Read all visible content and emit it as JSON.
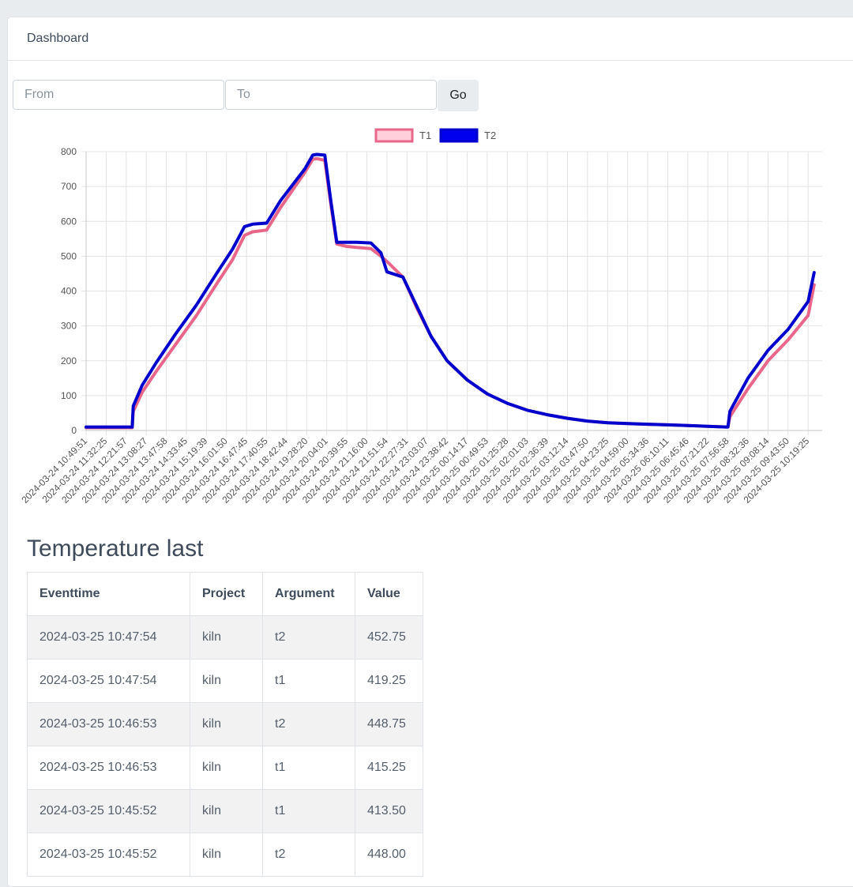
{
  "header": {
    "title": "Dashboard"
  },
  "filter": {
    "from_placeholder": "From",
    "to_placeholder": "To",
    "go_label": "Go"
  },
  "chart_data": {
    "type": "line",
    "legend_position": "top",
    "grid": true,
    "ylim": [
      0,
      800
    ],
    "yticks": [
      0,
      100,
      200,
      300,
      400,
      500,
      600,
      700,
      800
    ],
    "xticks": [
      "2024-03-24 10:49:51",
      "2024-03-24 11:32:25",
      "2024-03-24 12:21:57",
      "2024-03-24 13:08:27",
      "2024-03-24 13:47:58",
      "2024-03-24 14:33:45",
      "2024-03-24 15:19:39",
      "2024-03-24 16:01:50",
      "2024-03-24 16:47:45",
      "2024-03-24 17:40:55",
      "2024-03-24 18:42:44",
      "2024-03-24 19:28:20",
      "2024-03-24 20:04:01",
      "2024-03-24 20:39:55",
      "2024-03-24 21:16:00",
      "2024-03-24 21:51:54",
      "2024-03-24 22:27:31",
      "2024-03-24 23:03:07",
      "2024-03-24 23:38:42",
      "2024-03-25 00:14:17",
      "2024-03-25 00:49:53",
      "2024-03-25 01:25:28",
      "2024-03-25 02:01:03",
      "2024-03-25 02:36:39",
      "2024-03-25 03:12:14",
      "2024-03-25 03:47:50",
      "2024-03-25 04:23:25",
      "2024-03-25 04:59:00",
      "2024-03-25 05:34:36",
      "2024-03-25 06:10:11",
      "2024-03-25 06:45:46",
      "2024-03-25 07:21:22",
      "2024-03-25 07:56:58",
      "2024-03-25 08:32:36",
      "2024-03-25 09:08:14",
      "2024-03-25 09:43:50",
      "2024-03-25 10:19:25"
    ],
    "series": [
      {
        "name": "T1",
        "color": "#e8668a",
        "fill": "#ffcfdc",
        "x": [
          0,
          2.3,
          2.35,
          2.8,
          3.5,
          4.5,
          5.5,
          6.5,
          7.3,
          7.9,
          8.3,
          9.0,
          9.7,
          10.3,
          10.9,
          11.3,
          11.5,
          11.9,
          12.2,
          12.5,
          13.0,
          13.5,
          14.2,
          14.7,
          15.0,
          15.8,
          16.5,
          17.2,
          18.0,
          19.0,
          20.0,
          21.0,
          22.0,
          23.0,
          24.0,
          25.0,
          26.0,
          27.0,
          28.0,
          29.0,
          30.0,
          31.0,
          31.9,
          32.0,
          32.1,
          33.0,
          34.0,
          35.0,
          36.0,
          36.3
        ],
        "y": [
          8,
          8,
          55,
          110,
          170,
          250,
          330,
          420,
          490,
          560,
          570,
          575,
          640,
          690,
          740,
          778,
          780,
          775,
          650,
          535,
          528,
          525,
          522,
          500,
          485,
          440,
          350,
          270,
          200,
          145,
          105,
          78,
          58,
          45,
          35,
          27,
          22,
          20,
          18,
          16,
          14,
          12,
          10,
          10,
          40,
          120,
          200,
          260,
          330,
          418
        ]
      },
      {
        "name": "T2",
        "color": "#0000cc",
        "fill": "#0000ee",
        "x": [
          0,
          2.3,
          2.35,
          2.8,
          3.5,
          4.5,
          5.5,
          6.5,
          7.3,
          7.9,
          8.3,
          9.0,
          9.7,
          10.3,
          10.9,
          11.3,
          11.5,
          11.9,
          12.2,
          12.5,
          13.0,
          13.5,
          14.2,
          14.7,
          15.0,
          15.8,
          16.5,
          17.2,
          18.0,
          19.0,
          20.0,
          21.0,
          22.0,
          23.0,
          24.0,
          25.0,
          26.0,
          27.0,
          28.0,
          29.0,
          30.0,
          31.0,
          31.9,
          32.0,
          32.1,
          33.0,
          34.0,
          35.0,
          36.0,
          36.3
        ],
        "y": [
          10,
          10,
          70,
          130,
          195,
          280,
          360,
          450,
          520,
          585,
          592,
          595,
          660,
          705,
          750,
          790,
          792,
          790,
          660,
          540,
          540,
          540,
          538,
          510,
          455,
          440,
          355,
          270,
          200,
          145,
          105,
          78,
          58,
          45,
          35,
          27,
          22,
          20,
          18,
          16,
          14,
          12,
          10,
          10,
          55,
          150,
          230,
          290,
          370,
          453
        ]
      }
    ]
  },
  "table": {
    "title": "Temperature last",
    "headers": [
      "Eventtime",
      "Project",
      "Argument",
      "Value"
    ],
    "rows": [
      [
        "2024-03-25 10:47:54",
        "kiln",
        "t2",
        "452.75"
      ],
      [
        "2024-03-25 10:47:54",
        "kiln",
        "t1",
        "419.25"
      ],
      [
        "2024-03-25 10:46:53",
        "kiln",
        "t2",
        "448.75"
      ],
      [
        "2024-03-25 10:46:53",
        "kiln",
        "t1",
        "415.25"
      ],
      [
        "2024-03-25 10:45:52",
        "kiln",
        "t1",
        "413.50"
      ],
      [
        "2024-03-25 10:45:52",
        "kiln",
        "t2",
        "448.00"
      ]
    ]
  }
}
